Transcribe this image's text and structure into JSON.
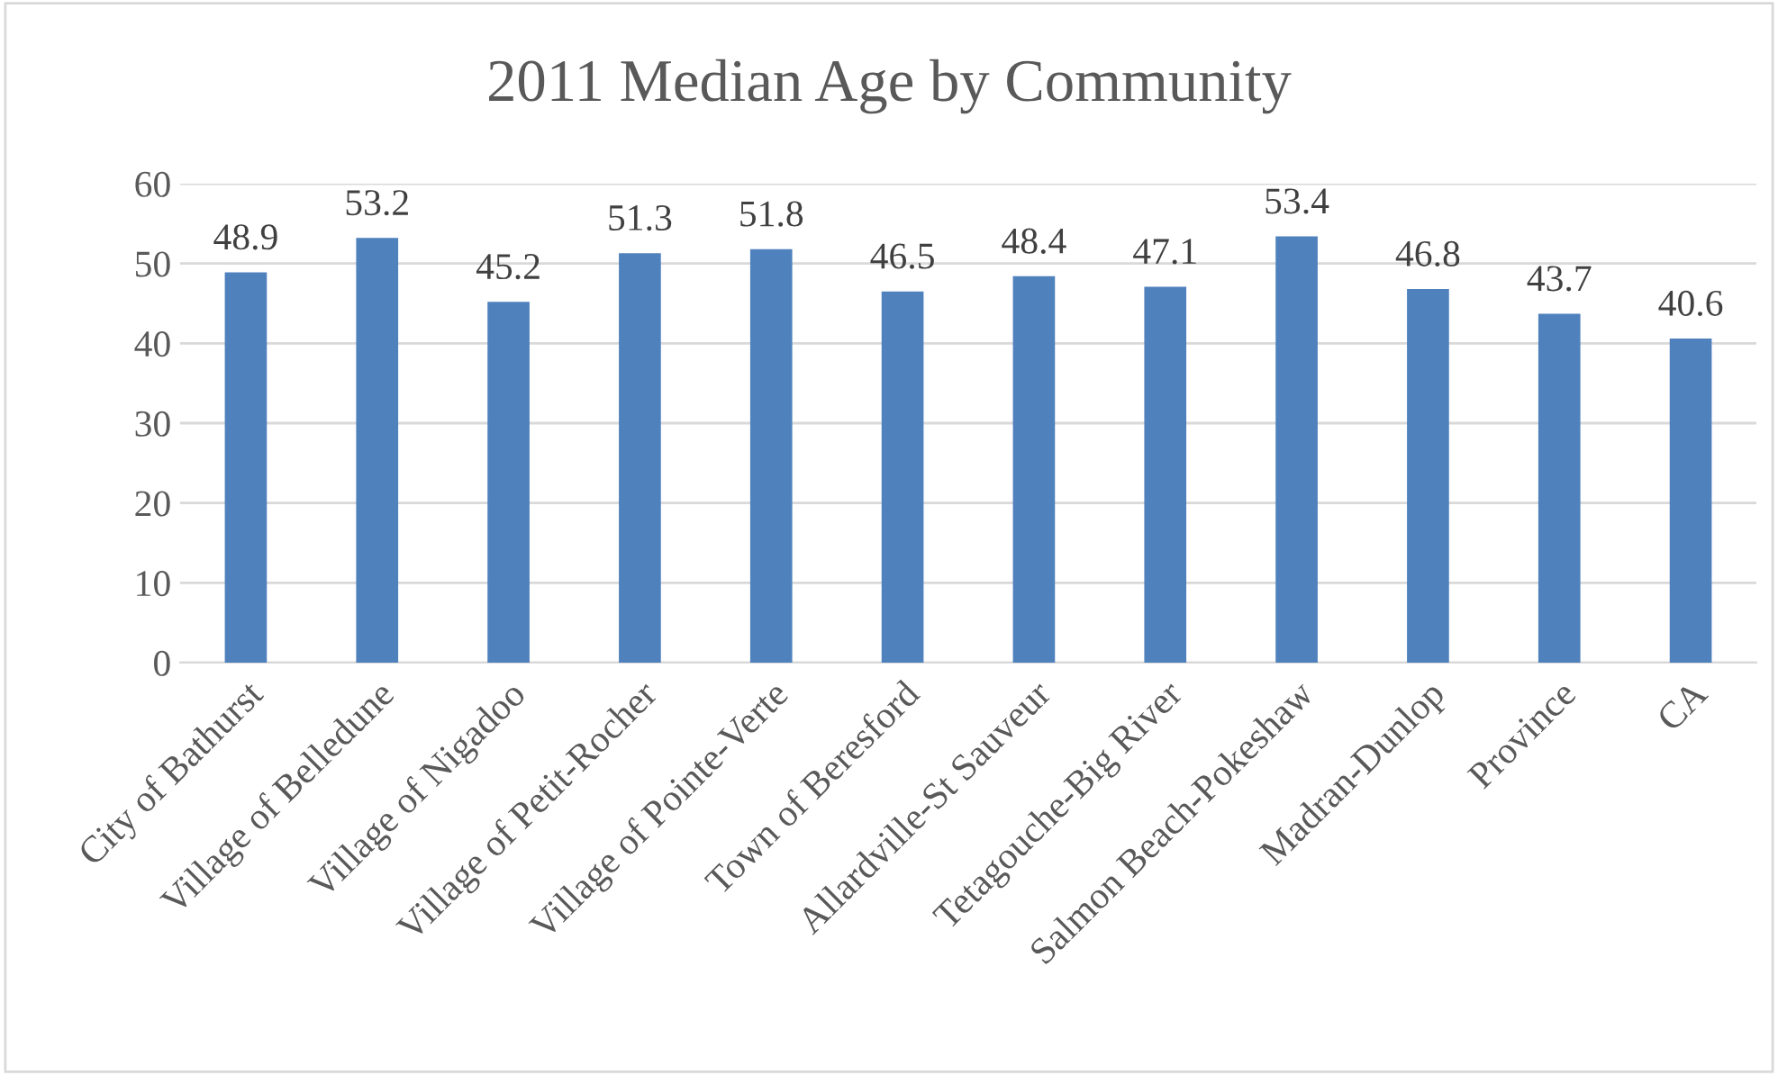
{
  "chart_data": {
    "type": "bar",
    "title": "2011 Median Age by Community",
    "categories": [
      "City of Bathurst",
      "Village of Belledune",
      "Village of Nigadoo",
      "Village of Petit-Rocher",
      "Village of Pointe-Verte",
      "Town of Beresford",
      "Allardville-St Sauveur",
      "Tetagouche-Big River",
      "Salmon Beach-Pokeshaw",
      "Madran-Dunlop",
      "Province",
      "CA"
    ],
    "values": [
      48.9,
      53.2,
      45.2,
      51.3,
      51.8,
      46.5,
      48.4,
      47.1,
      53.4,
      46.8,
      43.7,
      40.6
    ],
    "color": "#4f81bd",
    "ylim": [
      0,
      60
    ],
    "yticks": [
      0,
      10,
      20,
      30,
      40,
      50,
      60
    ],
    "grid": "y",
    "data_labels": true
  }
}
